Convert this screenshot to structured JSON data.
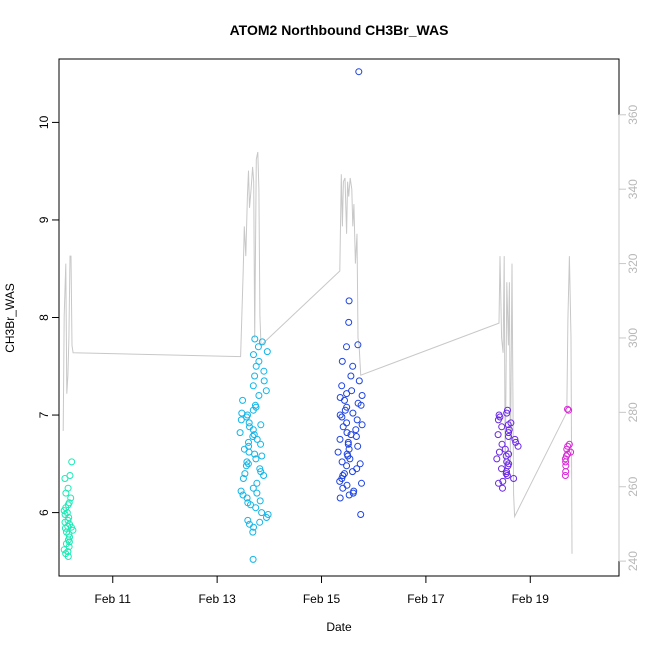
{
  "chart_data": {
    "type": "scatter",
    "title": "ATOM2 Northbound CH3Br_WAS",
    "xlabel": "Date",
    "ylabel": "CH3Br_WAS",
    "x_ticks": [
      {
        "value": 11,
        "label": "Feb 11"
      },
      {
        "value": 13,
        "label": "Feb 13"
      },
      {
        "value": 15,
        "label": "Feb 15"
      },
      {
        "value": 17,
        "label": "Feb 17"
      },
      {
        "value": 19,
        "label": "Feb 19"
      }
    ],
    "xlim": [
      9.97,
      20.7
    ],
    "ylim": [
      5.35,
      10.65
    ],
    "y_ticks": [
      6,
      7,
      8,
      9,
      10
    ],
    "y2_ticks": [
      240,
      260,
      280,
      300,
      320,
      340,
      360
    ],
    "y2lim": [
      236,
      375
    ],
    "y2_color": "#c8c8c8",
    "grid": false,
    "series": [
      {
        "flight": 1,
        "color": "#1de9b6",
        "x_center": 10.15,
        "x_spread": 0.1,
        "y_values": [
          5.55,
          5.58,
          5.6,
          5.62,
          5.65,
          5.68,
          5.7,
          5.72,
          5.75,
          5.78,
          5.8,
          5.82,
          5.84,
          5.85,
          5.86,
          5.88,
          5.9,
          5.92,
          5.95,
          5.98,
          6.0,
          6.02,
          6.05,
          6.08,
          6.1,
          6.15,
          6.2,
          6.25,
          6.35,
          6.38,
          6.52
        ]
      },
      {
        "flight": 2,
        "color": "#13b5e8",
        "x_center": 13.72,
        "x_spread": 0.32,
        "y_values": [
          5.52,
          5.8,
          5.85,
          5.88,
          5.9,
          5.92,
          5.95,
          5.98,
          6.0,
          6.05,
          6.08,
          6.1,
          6.12,
          6.15,
          6.18,
          6.2,
          6.22,
          6.25,
          6.3,
          6.35,
          6.38,
          6.4,
          6.42,
          6.45,
          6.48,
          6.5,
          6.52,
          6.55,
          6.58,
          6.6,
          6.62,
          6.65,
          6.68,
          6.7,
          6.72,
          6.75,
          6.78,
          6.8,
          6.82,
          6.85,
          6.88,
          6.9,
          6.92,
          6.95,
          6.98,
          7.0,
          7.02,
          7.05,
          7.08,
          7.1,
          7.15,
          7.2,
          7.25,
          7.3,
          7.35,
          7.4,
          7.45,
          7.5,
          7.55,
          7.62,
          7.65,
          7.7,
          7.75,
          7.78
        ]
      },
      {
        "flight": 3,
        "color": "#1e44e0",
        "x_center": 15.55,
        "x_spread": 0.3,
        "y_values": [
          5.98,
          6.15,
          6.18,
          6.2,
          6.22,
          6.25,
          6.28,
          6.3,
          6.32,
          6.35,
          6.38,
          6.4,
          6.42,
          6.45,
          6.48,
          6.5,
          6.52,
          6.55,
          6.58,
          6.6,
          6.62,
          6.65,
          6.68,
          6.7,
          6.72,
          6.75,
          6.78,
          6.8,
          6.82,
          6.85,
          6.88,
          6.9,
          6.92,
          6.95,
          6.98,
          7.0,
          7.02,
          7.05,
          7.08,
          7.1,
          7.12,
          7.15,
          7.18,
          7.2,
          7.22,
          7.25,
          7.3,
          7.35,
          7.4,
          7.5,
          7.55,
          7.7,
          7.72,
          7.95,
          8.17,
          10.52
        ]
      },
      {
        "flight": 4,
        "color": "#6a28e6",
        "x_center": 18.55,
        "x_spread": 0.25,
        "y_values": [
          6.25,
          6.3,
          6.32,
          6.35,
          6.38,
          6.4,
          6.42,
          6.45,
          6.48,
          6.5,
          6.52,
          6.55,
          6.58,
          6.6,
          6.62,
          6.65,
          6.68,
          6.7,
          6.72,
          6.75,
          6.78,
          6.8,
          6.82,
          6.85,
          6.88,
          6.9,
          6.92,
          6.95,
          6.98,
          7.0,
          7.02,
          7.05
        ]
      },
      {
        "flight": 5,
        "color": "#d62ad6",
        "x_center": 19.72,
        "x_spread": 0.08,
        "y_values": [
          6.38,
          6.42,
          6.48,
          6.52,
          6.55,
          6.58,
          6.6,
          6.62,
          6.65,
          6.68,
          6.7,
          7.05,
          7.06
        ]
      }
    ],
    "altitude_line": {
      "color": "#c8c8c8",
      "x": [
        10.05,
        10.07,
        10.1,
        10.12,
        10.14,
        10.16,
        10.18,
        10.2,
        10.22,
        10.24,
        13.45,
        13.5,
        13.52,
        13.55,
        13.58,
        13.6,
        13.62,
        13.65,
        13.68,
        13.7,
        13.72,
        13.75,
        13.78,
        13.8,
        13.82,
        13.84,
        15.35,
        15.38,
        15.4,
        15.42,
        15.45,
        15.48,
        15.5,
        15.52,
        15.55,
        15.58,
        15.6,
        15.62,
        15.65,
        15.68,
        15.7,
        15.72,
        15.75,
        18.4,
        18.42,
        18.45,
        18.48,
        18.5,
        18.52,
        18.55,
        18.58,
        18.6,
        18.62,
        18.65,
        18.68,
        18.7,
        19.7,
        19.72,
        19.75,
        19.78,
        19.8
      ],
      "y": [
        275,
        306,
        320,
        285,
        290,
        300,
        322,
        322,
        298,
        296,
        295,
        318,
        330,
        322,
        338,
        345,
        335,
        340,
        346,
        342,
        300,
        348,
        350,
        340,
        306,
        298,
        318,
        344,
        330,
        342,
        343,
        328,
        342,
        338,
        343,
        340,
        330,
        336,
        320,
        328,
        300,
        298,
        290,
        304,
        322,
        300,
        296,
        322,
        262,
        315,
        298,
        315,
        265,
        320,
        258,
        252,
        280,
        305,
        322,
        300,
        242
      ]
    }
  }
}
